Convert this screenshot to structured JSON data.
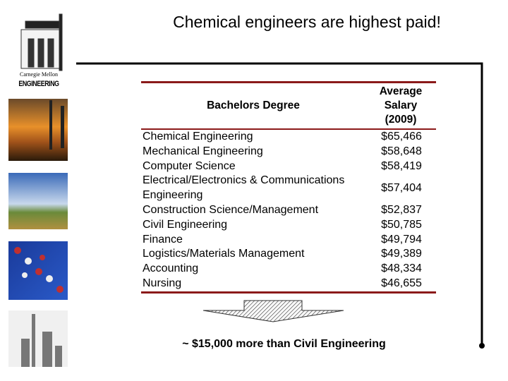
{
  "title": "Chemical engineers are highest paid!",
  "logo": {
    "university": "Carnegie Mellon",
    "school": "ENGINEERING"
  },
  "table": {
    "header": [
      "Bachelors Degree",
      "Average Salary (2009)"
    ],
    "rows": [
      [
        "Chemical Engineering",
        "$65,466"
      ],
      [
        "Mechanical Engineering",
        "$58,648"
      ],
      [
        "Computer Science",
        "$58,419"
      ],
      [
        "Electrical/Electronics & Communications Engineering",
        "$57,404"
      ],
      [
        "Construction Science/Management",
        "$52,837"
      ],
      [
        "Civil Engineering",
        "$50,785"
      ],
      [
        "Finance",
        "$49,794"
      ],
      [
        "Logistics/Materials Management",
        "$49,389"
      ],
      [
        "Accounting",
        "$48,334"
      ],
      [
        "Nursing",
        "$46,655"
      ]
    ]
  },
  "footnote": "~ $15,000 more than Civil Engineering"
}
